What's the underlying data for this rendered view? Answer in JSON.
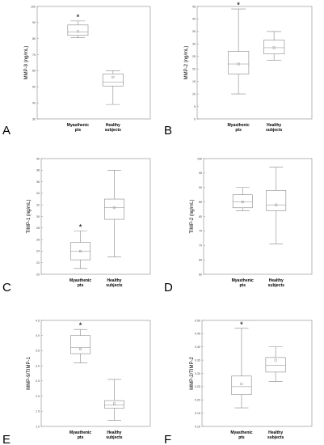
{
  "chart_data": [
    {
      "type": "boxplot",
      "panel_letter": "A",
      "ylabel": "MMP-9 (ng/mL)",
      "categories": [
        "Myasthenic\npts",
        "Healthy\nsubjects"
      ],
      "ylim": [
        30,
        100
      ],
      "yticks": [
        30,
        40,
        50,
        60,
        70,
        80,
        90,
        100
      ],
      "boxes": [
        {
          "min": 80.5,
          "q1": 82,
          "median": 84,
          "q3": 88.5,
          "max": 91,
          "mean": 84.5
        },
        {
          "min": 39,
          "q1": 50.5,
          "median": 53,
          "q3": 58,
          "max": 60,
          "mean": 56
        }
      ],
      "annotations": [
        {
          "text": "*",
          "category": 0
        }
      ]
    },
    {
      "type": "boxplot",
      "panel_letter": "B",
      "ylabel": "MMP-2 (ng/mL)",
      "categories": [
        "Myasthenic\npts",
        "Healthy\nsubjects"
      ],
      "ylim": [
        0,
        45
      ],
      "yticks": [
        0,
        5,
        10,
        15,
        20,
        25,
        30,
        35,
        40,
        45
      ],
      "boxes": [
        {
          "min": 10,
          "q1": 18,
          "median": 22,
          "q3": 27,
          "max": 44,
          "mean": 22
        },
        {
          "min": 23.5,
          "q1": 26,
          "median": 28.5,
          "q3": 31.5,
          "max": 35,
          "mean": 28.5
        }
      ],
      "annotations": [
        {
          "text": "*",
          "category": 0
        }
      ]
    },
    {
      "type": "boxplot",
      "panel_letter": "C",
      "ylabel": "TIMP-1 (ng/mL)",
      "categories": [
        "Myasthenic\npts",
        "Healthy\nsubjects"
      ],
      "ylim": [
        20,
        40
      ],
      "yticks": [
        20,
        22,
        24,
        26,
        28,
        30,
        32,
        34,
        36,
        38,
        40
      ],
      "boxes": [
        {
          "min": 21,
          "q1": 22.5,
          "median": 24,
          "q3": 25.5,
          "max": 27.5,
          "mean": 24
        },
        {
          "min": 23,
          "q1": 29.5,
          "median": 31.5,
          "q3": 33,
          "max": 38,
          "mean": 31.5
        }
      ],
      "annotations": [
        {
          "text": "*",
          "category": 0
        }
      ]
    },
    {
      "type": "boxplot",
      "panel_letter": "D",
      "ylabel": "TIMP-2 (ng/mL)",
      "categories": [
        "Myasthenic\npts",
        "Healthy\nsubjects"
      ],
      "ylim": [
        60,
        100
      ],
      "yticks": [
        60,
        65,
        70,
        75,
        80,
        85,
        90,
        95,
        100
      ],
      "boxes": [
        {
          "min": 82,
          "q1": 83,
          "median": 85,
          "q3": 87.5,
          "max": 90,
          "mean": 85
        },
        {
          "min": 70.5,
          "q1": 82,
          "median": 84,
          "q3": 89,
          "max": 97,
          "mean": 84
        }
      ],
      "annotations": []
    },
    {
      "type": "boxplot",
      "panel_letter": "E",
      "ylabel": "MMP-9/TIMP-1",
      "categories": [
        "Myasthenic\npts",
        "Healthy\nsubjects"
      ],
      "ylim": [
        1.0,
        4.5
      ],
      "yticks": [
        1.0,
        1.5,
        2.0,
        2.5,
        3.0,
        3.5,
        4.0,
        4.5
      ],
      "boxes": [
        {
          "min": 3.1,
          "q1": 3.4,
          "median": 3.6,
          "q3": 4.0,
          "max": 4.2,
          "mean": 3.55
        },
        {
          "min": 1.2,
          "q1": 1.6,
          "median": 1.7,
          "q3": 1.85,
          "max": 2.55,
          "mean": 1.75
        }
      ],
      "annotations": [
        {
          "text": "*",
          "category": 0
        }
      ]
    },
    {
      "type": "boxplot",
      "panel_letter": "F",
      "ylabel": "MMP-2/TIMP-2",
      "categories": [
        "Myasthenic\npts",
        "Healthy\nsubjects"
      ],
      "ylim": [
        0.1,
        0.5
      ],
      "yticks": [
        0.1,
        0.15,
        0.2,
        0.25,
        0.3,
        0.35,
        0.4,
        0.45,
        0.5
      ],
      "boxes": [
        {
          "min": 0.17,
          "q1": 0.22,
          "median": 0.25,
          "q3": 0.29,
          "max": 0.47,
          "mean": 0.26
        },
        {
          "min": 0.27,
          "q1": 0.305,
          "median": 0.33,
          "q3": 0.36,
          "max": 0.4,
          "mean": 0.35
        }
      ],
      "annotations": [
        {
          "text": "*",
          "category": 0
        }
      ]
    }
  ],
  "colors": {
    "box_edge": "#888888",
    "whisker": "#888888",
    "mean_marker": "#8a9a8a",
    "median_line": "#c06060",
    "frame": "#888888",
    "text": "#000000"
  }
}
